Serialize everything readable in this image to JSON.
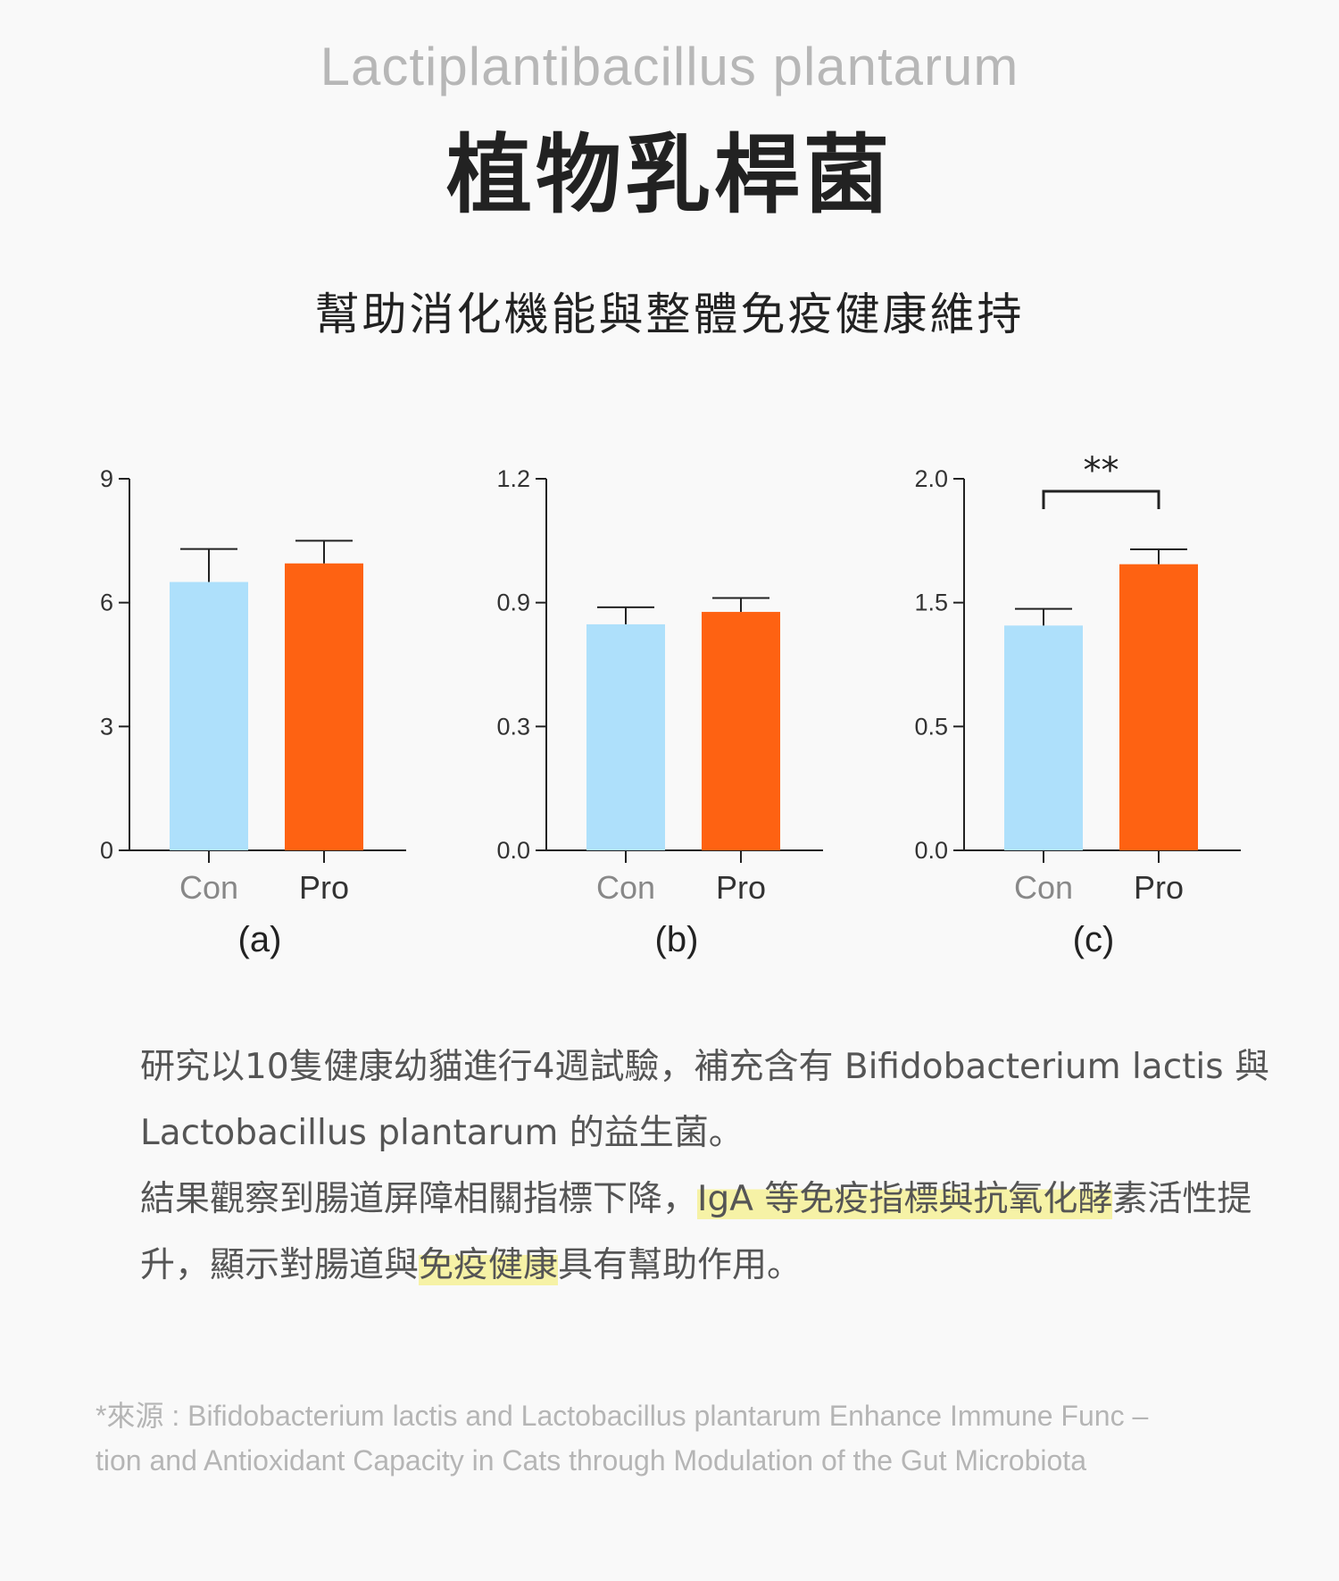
{
  "header": {
    "latin_name": "Lactiplantibacillus  plantarum",
    "title": "植物乳桿菌",
    "subtitle": "幫助消化機能與整體免疫健康維持"
  },
  "colors": {
    "con": "#aee0fb",
    "pro": "#fe6212",
    "axis": "#222222"
  },
  "chart_data": [
    {
      "type": "bar",
      "panel": "(a)",
      "categories": [
        "Con",
        "Pro"
      ],
      "values": [
        6.5,
        6.95
      ],
      "errors": [
        0.8,
        0.55
      ],
      "yticks": [
        "0",
        "3",
        "6",
        "9"
      ],
      "ylim": [
        0,
        9
      ],
      "significance": ""
    },
    {
      "type": "bar",
      "panel": "(b)",
      "categories": [
        "Con",
        "Pro"
      ],
      "values": [
        0.73,
        0.77
      ],
      "errors": [
        0.055,
        0.045
      ],
      "yticks": [
        "0.0",
        "0.3",
        "0.9",
        "1.2"
      ],
      "ylim": [
        0,
        1.2
      ],
      "significance": ""
    },
    {
      "type": "bar",
      "panel": "(c)",
      "categories": [
        "Con",
        "Pro"
      ],
      "values": [
        1.21,
        1.54
      ],
      "errors": [
        0.09,
        0.08
      ],
      "yticks": [
        "0.0",
        "0.5",
        "1.5",
        "2.0"
      ],
      "ylim": [
        0,
        2.0
      ],
      "significance": "**"
    }
  ],
  "description": {
    "p1": "研究以10隻健康幼貓進行4週試驗，補充含有 Bifidobacterium lactis 與 Lactobacillus plantarum 的益生菌。",
    "p2_a": "結果觀察到腸道屏障相關指標下降，",
    "p2_hl1": "IgA 等免疫指標與抗氧化酵",
    "p2_b": "素活性提升，顯示對腸道與",
    "p2_hl2": "免疫健康",
    "p2_c": "具有幫助作用。"
  },
  "source": {
    "line1": "*來源 : Bifidobacterium lactis and Lactobacillus plantarum Enhance Immune Func –",
    "line2": "tion and Antioxidant Capacity in Cats through Modulation of the Gut Microbiota"
  }
}
